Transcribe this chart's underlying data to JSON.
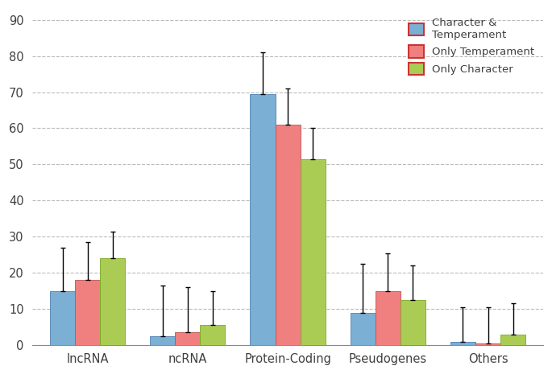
{
  "categories": [
    "lncRNA",
    "ncRNA",
    "Protein-Coding",
    "Pseudogenes",
    "Others"
  ],
  "series": {
    "Character & Temperament": {
      "values": [
        15,
        2.5,
        69.5,
        9,
        1
      ],
      "errors": [
        12,
        14,
        11.5,
        13.5,
        9.5
      ],
      "color": "#7BAFD4",
      "edge_color": "#5080B0"
    },
    "Only Temperament": {
      "values": [
        18,
        3.5,
        61,
        15,
        0.5
      ],
      "errors": [
        10.5,
        12.5,
        10,
        10.5,
        10
      ],
      "color": "#F08080",
      "edge_color": "#C05050"
    },
    "Only Character": {
      "values": [
        24,
        5.5,
        51.5,
        12.5,
        3
      ],
      "errors": [
        7.5,
        9.5,
        8.5,
        9.5,
        8.5
      ],
      "color": "#AACC55",
      "edge_color": "#77AA22"
    }
  },
  "ylim": [
    0,
    93
  ],
  "yticks": [
    0,
    10,
    20,
    30,
    40,
    50,
    60,
    70,
    80,
    90
  ],
  "bar_width": 0.25,
  "legend_labels": [
    "Character &\nTemperament",
    "Only Temperament",
    "Only Character"
  ],
  "legend_colors": [
    "#7BAFD4",
    "#F08080",
    "#AACC55"
  ],
  "legend_edge_colors": [
    "#CC3333",
    "#CC3333",
    "#CC3333"
  ],
  "grid_color": "#BBBBBB",
  "background_color": "#FFFFFF",
  "text_color": "#404040"
}
